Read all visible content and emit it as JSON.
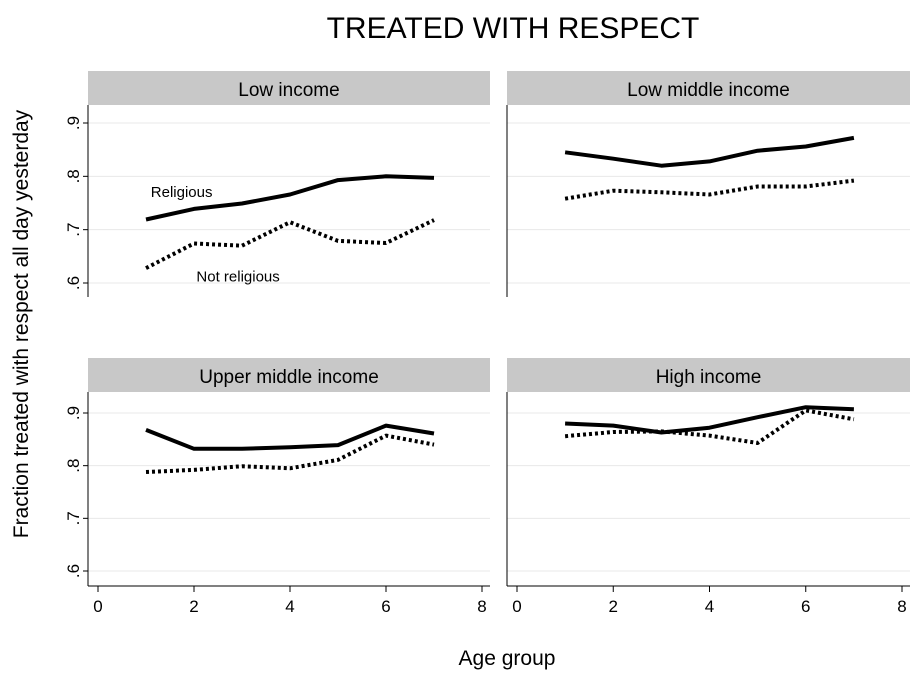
{
  "chart_data": {
    "type": "line",
    "title": "TREATED WITH RESPECT",
    "xlabel": "Age group",
    "ylabel": "Fraction treated with respect all day yesterday",
    "xlim": [
      0,
      8
    ],
    "ylim": [
      0.6,
      0.9
    ],
    "x_ticks": [
      0,
      2,
      4,
      6,
      8
    ],
    "x_tick_labels": [
      "0",
      "2",
      "4",
      "6",
      "8"
    ],
    "y_ticks": [
      0.6,
      0.7,
      0.8,
      0.9
    ],
    "y_tick_labels": [
      ".6",
      ".7",
      ".8",
      ".9"
    ],
    "grid": true,
    "x": [
      1,
      2,
      3,
      4,
      5,
      6,
      7
    ],
    "panel_strip_color": "#c8c8c8",
    "panels": [
      {
        "title": "Low income",
        "series": [
          {
            "name": "Religious",
            "style": "solid",
            "values": [
              0.719,
              0.739,
              0.749,
              0.766,
              0.793,
              0.8,
              0.797
            ]
          },
          {
            "name": "Not religious",
            "style": "dotted",
            "values": [
              0.628,
              0.674,
              0.67,
              0.714,
              0.679,
              0.675,
              0.718
            ]
          }
        ],
        "annotations": [
          {
            "text": "Religious",
            "x": 1.1,
            "y": 0.771
          },
          {
            "text": "Not religious",
            "x": 2.05,
            "y": 0.612
          }
        ]
      },
      {
        "title": "Low middle income",
        "series": [
          {
            "name": "Religious",
            "style": "solid",
            "values": [
              0.845,
              0.833,
              0.82,
              0.828,
              0.848,
              0.856,
              0.872
            ]
          },
          {
            "name": "Not religious",
            "style": "dotted",
            "values": [
              0.758,
              0.773,
              0.77,
              0.766,
              0.781,
              0.781,
              0.792
            ]
          }
        ]
      },
      {
        "title": "Upper middle income",
        "series": [
          {
            "name": "Religious",
            "style": "solid",
            "values": [
              0.868,
              0.832,
              0.832,
              0.835,
              0.839,
              0.876,
              0.861
            ]
          },
          {
            "name": "Not religious",
            "style": "dotted",
            "values": [
              0.788,
              0.792,
              0.799,
              0.795,
              0.811,
              0.857,
              0.84
            ]
          }
        ]
      },
      {
        "title": "High income",
        "series": [
          {
            "name": "Religious",
            "style": "solid",
            "values": [
              0.88,
              0.876,
              0.863,
              0.872,
              0.892,
              0.911,
              0.907
            ]
          },
          {
            "name": "Not religious",
            "style": "dotted",
            "values": [
              0.856,
              0.864,
              0.865,
              0.857,
              0.843,
              0.905,
              0.888
            ]
          }
        ]
      }
    ]
  }
}
